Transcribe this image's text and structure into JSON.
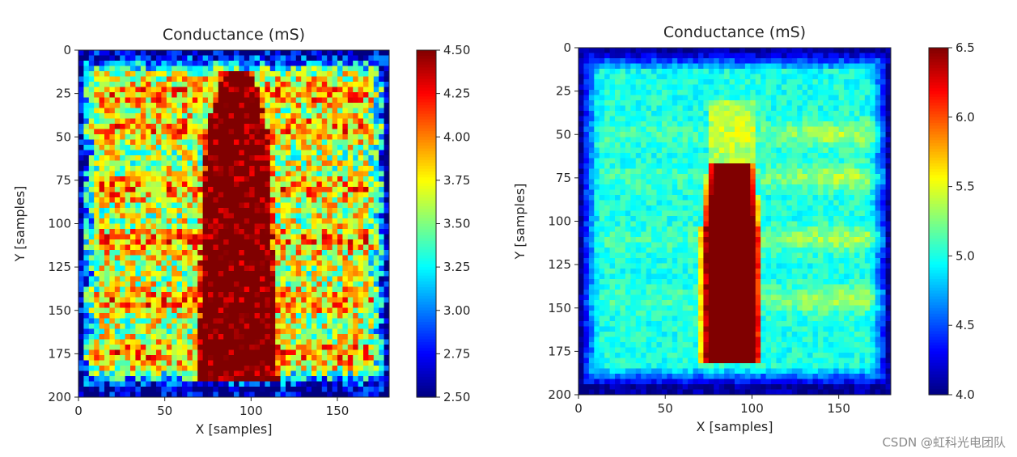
{
  "watermark": "CSDN @虹科光电团队",
  "chart_data": [
    {
      "type": "heatmap",
      "title": "Conductance (mS)",
      "xlabel": "X [samples]",
      "ylabel": "Y [samples]",
      "xlim": [
        0,
        180
      ],
      "ylim": [
        200,
        0
      ],
      "x_ticks": [
        "0",
        "50",
        "100",
        "150"
      ],
      "y_ticks": [
        "0",
        "25",
        "50",
        "75",
        "100",
        "125",
        "150",
        "175",
        "200"
      ],
      "colormap": "jet",
      "clim": [
        2.5,
        4.5
      ],
      "colorbar_ticks": [
        "2.50",
        "2.75",
        "3.00",
        "3.25",
        "3.50",
        "3.75",
        "4.00",
        "4.25",
        "4.50"
      ],
      "colors": {
        "low": "#00007f",
        "high": "#7f0000"
      },
      "features": {
        "background": 3.6,
        "frame_edge": 2.7,
        "bright_rows_y": [
          25,
          45,
          80,
          110,
          145,
          175
        ],
        "object": {
          "x_center": 92,
          "y_top": 12,
          "y_bottom": 190,
          "value": 4.5
        }
      }
    },
    {
      "type": "heatmap",
      "title": "Conductance (mS)",
      "xlabel": "X [samples]",
      "ylabel": "Y [samples]",
      "xlim": [
        0,
        180
      ],
      "ylim": [
        200,
        0
      ],
      "x_ticks": [
        "0",
        "50",
        "100",
        "150"
      ],
      "y_ticks": [
        "0",
        "25",
        "50",
        "75",
        "100",
        "125",
        "150",
        "175",
        "200"
      ],
      "colormap": "jet",
      "clim": [
        4.0,
        6.5
      ],
      "colorbar_ticks": [
        "4.0",
        "4.5",
        "5.0",
        "5.5",
        "6.0",
        "6.5"
      ],
      "colors": {
        "low": "#00007f",
        "high": "#7f0000"
      },
      "features": {
        "background": 5.0,
        "frame_edge": 4.2,
        "bright_rows_y": [
          50,
          75,
          110,
          145
        ],
        "object": {
          "x_center": 88,
          "y_top": 68,
          "y_bottom": 182,
          "value": 6.5
        }
      }
    }
  ]
}
